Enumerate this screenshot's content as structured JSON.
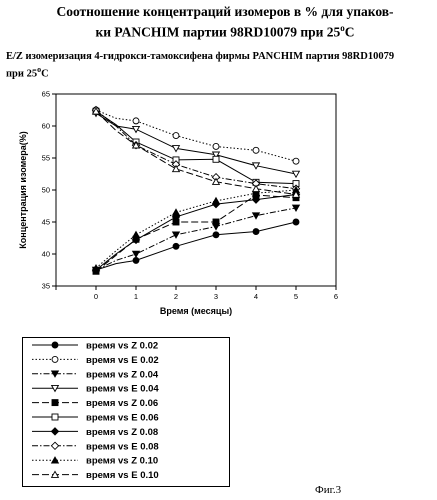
{
  "header": {
    "title_line1": "Соотношение концентраций изомеров в % для упаков-",
    "title_line2": "ки PANCHIM партии 98RD10079 при 25",
    "title_deg": "o",
    "title_unit": "C"
  },
  "figure_caption": "Фиг.3",
  "chart_data": {
    "type": "line",
    "title_line1": "E/Z изомеризация 4-гидрокси-тамоксифена фирмы PANCHIM партия 98RD10079",
    "title_line2": "при 25",
    "title_deg": "o",
    "title_unit": "C",
    "xlabel": "Время (месяцы)",
    "ylabel": "Концентрация изомера(%)",
    "xlim": [
      -1,
      6
    ],
    "ylim": [
      35,
      65
    ],
    "xticks": [
      -1,
      0,
      1,
      2,
      3,
      4,
      5,
      6
    ],
    "xtick_labels": [
      "",
      "0",
      "1",
      "2",
      "3",
      "4",
      "5",
      "6"
    ],
    "yticks": [
      35,
      40,
      45,
      50,
      55,
      60,
      65
    ],
    "legend_position": "below",
    "grid": false,
    "x": [
      0,
      0.5,
      1,
      2,
      3,
      4,
      5
    ],
    "series": [
      {
        "name": "время   vs Z 0.02",
        "marker": "circle-filled",
        "dash": "solid",
        "values": [
          37.5,
          38.5,
          39.0,
          41.2,
          43.0,
          43.5,
          45.0
        ]
      },
      {
        "name": "время   vs E 0.02",
        "marker": "circle-open",
        "dash": "dotted",
        "values": [
          62.5,
          61.2,
          60.8,
          58.5,
          56.8,
          56.2,
          54.5
        ]
      },
      {
        "name": "время   vs Z 0.04",
        "marker": "triangle-down-filled",
        "dash": "dashdot",
        "values": [
          37.5,
          39.0,
          40.0,
          43.0,
          44.3,
          46.0,
          47.2
        ]
      },
      {
        "name": "время   vs E 0.04",
        "marker": "triangle-down-open",
        "dash": "solid",
        "values": [
          62.0,
          60.0,
          59.5,
          56.5,
          55.5,
          53.8,
          52.5
        ]
      },
      {
        "name": "время   vs Z 0.06",
        "marker": "square-filled",
        "dash": "longdash",
        "values": [
          37.3,
          39.8,
          42.3,
          45.0,
          45.0,
          49.2,
          48.8
        ]
      },
      {
        "name": "время   vs E 0.06",
        "marker": "square-open",
        "dash": "solid",
        "values": [
          62.3,
          60.2,
          57.5,
          54.7,
          54.8,
          51.2,
          51.0
        ]
      },
      {
        "name": "время   vs Z 0.08",
        "marker": "diamond-filled",
        "dash": "solid",
        "values": [
          37.5,
          40.0,
          42.2,
          45.8,
          47.8,
          48.5,
          49.3
        ]
      },
      {
        "name": "время   vs E 0.08",
        "marker": "diamond-open",
        "dash": "dashdot",
        "values": [
          62.5,
          60.0,
          57.0,
          54.0,
          52.0,
          51.0,
          50.2
        ]
      },
      {
        "name": "время   vs Z 0.10",
        "marker": "triangle-up-filled",
        "dash": "dotted",
        "values": [
          37.8,
          40.5,
          43.0,
          46.5,
          48.3,
          49.5,
          50.0
        ]
      },
      {
        "name": "время   vs E 0.10",
        "marker": "triangle-up-open",
        "dash": "longdash",
        "values": [
          62.3,
          59.3,
          57.0,
          53.3,
          51.3,
          50.2,
          49.3
        ]
      }
    ]
  }
}
